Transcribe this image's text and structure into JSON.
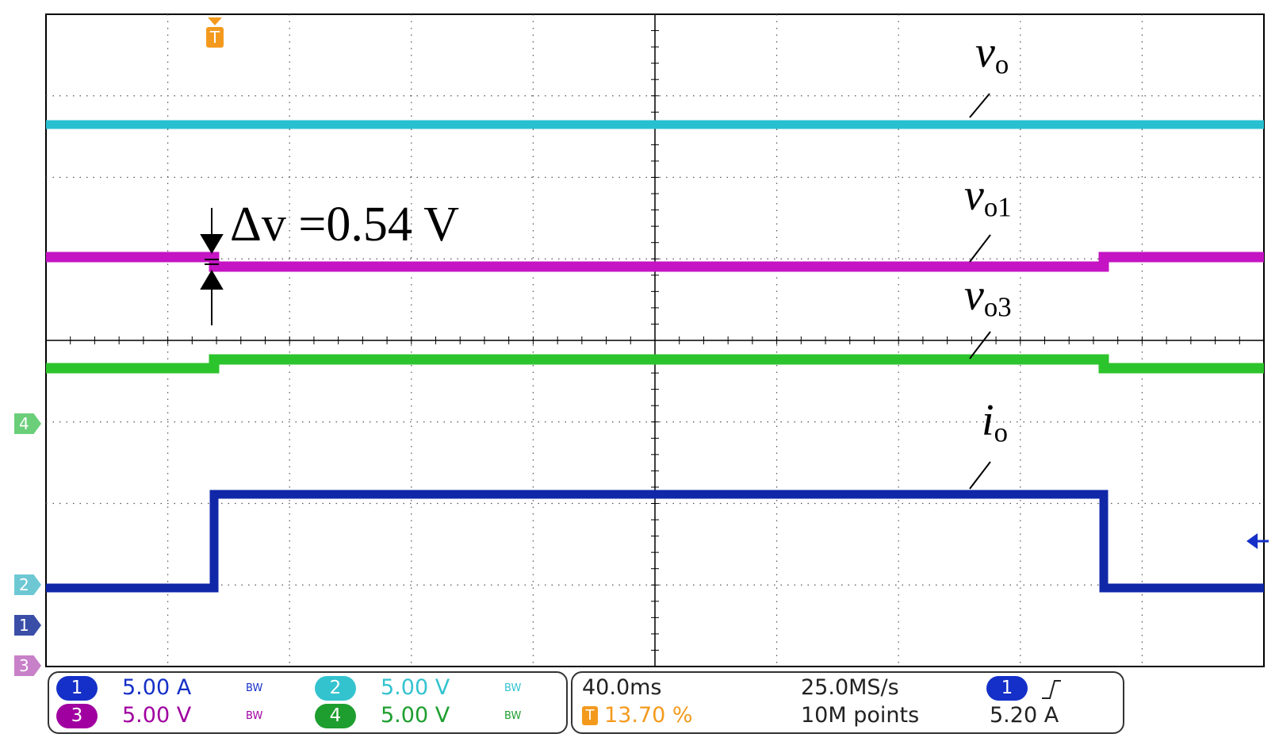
{
  "annotations": {
    "vo": {
      "main": "v",
      "sub": "o"
    },
    "vo1": {
      "main": "v",
      "sub": "o1"
    },
    "vo3": {
      "main": "v",
      "sub": "o3"
    },
    "io": {
      "main": "i",
      "sub": "o"
    },
    "delta": "Δv =0.54 V"
  },
  "channels": [
    {
      "num": "1",
      "scale": "5.00 A",
      "color": "#1530c8",
      "bw": "BW"
    },
    {
      "num": "2",
      "scale": "5.00 V",
      "color": "#33c3cf",
      "bw": "BW"
    },
    {
      "num": "3",
      "scale": "5.00 V",
      "color": "#a000a0",
      "bw": "BW"
    },
    {
      "num": "4",
      "scale": "5.00 V",
      "color": "#1e9e2e",
      "bw": "BW"
    }
  ],
  "timebase": {
    "time_per_div": "40.0ms",
    "trigger_position": "13.70 %",
    "sample_rate": "25.0MS/s",
    "record_length": "10M points"
  },
  "trigger": {
    "source": "1",
    "slope_icon": "rising-edge-icon",
    "level": "5.20 A",
    "marker": "T"
  },
  "markers": [
    "4",
    "2",
    "1",
    "3"
  ],
  "colors": {
    "trace_cyan": "#28c0d0",
    "trace_magenta": "#c414c4",
    "trace_green": "#2cc42c",
    "trace_blue": "#1028a8",
    "trigger_orange": "#f39a1e"
  }
}
